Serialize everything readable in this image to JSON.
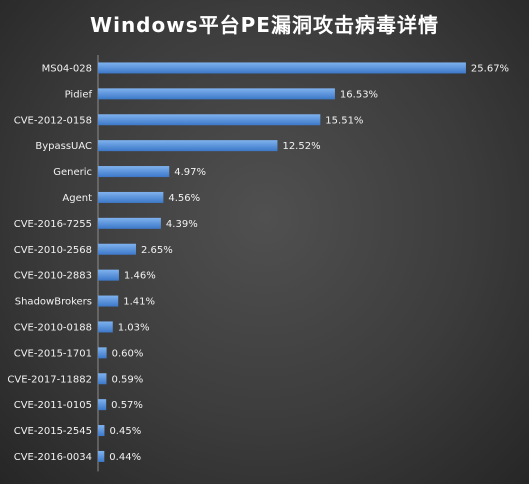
{
  "chart_data": {
    "type": "bar",
    "orientation": "horizontal",
    "title": "Windows平台PE漏洞攻击病毒详情",
    "categories": [
      "MS04-028",
      "Pidief",
      "CVE-2012-0158",
      "BypassUAC",
      "Generic",
      "Agent",
      "CVE-2016-7255",
      "CVE-2010-2568",
      "CVE-2010-2883",
      "ShadowBrokers",
      "CVE-2010-0188",
      "CVE-2015-1701",
      "CVE-2017-11882",
      "CVE-2011-0105",
      "CVE-2015-2545",
      "CVE-2016-0034"
    ],
    "values": [
      25.67,
      16.53,
      15.51,
      12.52,
      4.97,
      4.56,
      4.39,
      2.65,
      1.46,
      1.41,
      1.03,
      0.6,
      0.59,
      0.57,
      0.45,
      0.44
    ],
    "value_labels": [
      "25.67%",
      "16.53%",
      "15.51%",
      "12.52%",
      "4.97%",
      "4.56%",
      "4.39%",
      "2.65%",
      "1.46%",
      "1.41%",
      "1.03%",
      "0.60%",
      "0.59%",
      "0.57%",
      "0.45%",
      "0.44%"
    ],
    "unit": "%",
    "xlim": [
      0,
      27
    ],
    "grid": false,
    "legend": "none",
    "colors": {
      "bar_top": "#7fb2ee",
      "bar_bottom": "#3c78c8",
      "text": "#f2f2f2",
      "axis": "#8c8c8c"
    }
  }
}
